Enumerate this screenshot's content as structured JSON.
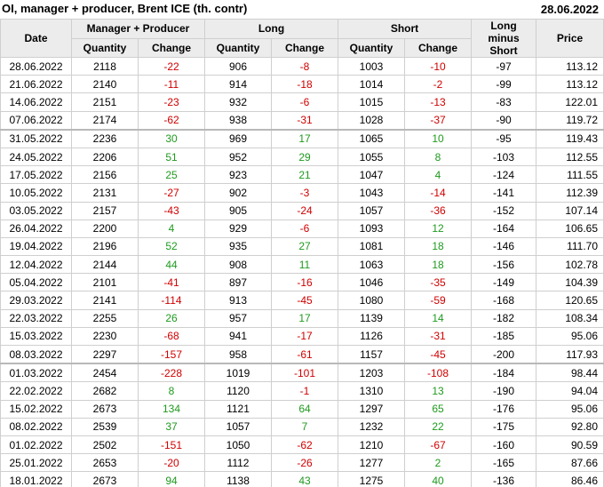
{
  "header": {
    "title": "OI, manager + producer, Brent ICE (th. contr)",
    "date": "28.06.2022"
  },
  "table": {
    "group_headers": {
      "date": "Date",
      "manager": "Manager + Producer",
      "long": "Long",
      "short": "Short",
      "long_minus_short": "Long minus Short",
      "price": "Price"
    },
    "sub_headers": [
      "Quantity",
      "Change",
      "Quantity",
      "Change",
      "Quantity",
      "Change"
    ],
    "rows": [
      [
        "28.06.2022",
        "2118",
        "-22",
        "906",
        "-8",
        "1003",
        "-10",
        "-97",
        "113.12"
      ],
      [
        "21.06.2022",
        "2140",
        "-11",
        "914",
        "-18",
        "1014",
        "-2",
        "-99",
        "113.12"
      ],
      [
        "14.06.2022",
        "2151",
        "-23",
        "932",
        "-6",
        "1015",
        "-13",
        "-83",
        "122.01"
      ],
      [
        "07.06.2022",
        "2174",
        "-62",
        "938",
        "-31",
        "1028",
        "-37",
        "-90",
        "119.72"
      ],
      [
        "31.05.2022",
        "2236",
        "30",
        "969",
        "17",
        "1065",
        "10",
        "-95",
        "119.43"
      ],
      [
        "24.05.2022",
        "2206",
        "51",
        "952",
        "29",
        "1055",
        "8",
        "-103",
        "112.55"
      ],
      [
        "17.05.2022",
        "2156",
        "25",
        "923",
        "21",
        "1047",
        "4",
        "-124",
        "111.55"
      ],
      [
        "10.05.2022",
        "2131",
        "-27",
        "902",
        "-3",
        "1043",
        "-14",
        "-141",
        "112.39"
      ],
      [
        "03.05.2022",
        "2157",
        "-43",
        "905",
        "-24",
        "1057",
        "-36",
        "-152",
        "107.14"
      ],
      [
        "26.04.2022",
        "2200",
        "4",
        "929",
        "-6",
        "1093",
        "12",
        "-164",
        "106.65"
      ],
      [
        "19.04.2022",
        "2196",
        "52",
        "935",
        "27",
        "1081",
        "18",
        "-146",
        "111.70"
      ],
      [
        "12.04.2022",
        "2144",
        "44",
        "908",
        "11",
        "1063",
        "18",
        "-156",
        "102.78"
      ],
      [
        "05.04.2022",
        "2101",
        "-41",
        "897",
        "-16",
        "1046",
        "-35",
        "-149",
        "104.39"
      ],
      [
        "29.03.2022",
        "2141",
        "-114",
        "913",
        "-45",
        "1080",
        "-59",
        "-168",
        "120.65"
      ],
      [
        "22.03.2022",
        "2255",
        "26",
        "957",
        "17",
        "1139",
        "14",
        "-182",
        "108.34"
      ],
      [
        "15.03.2022",
        "2230",
        "-68",
        "941",
        "-17",
        "1126",
        "-31",
        "-185",
        "95.06"
      ],
      [
        "08.03.2022",
        "2297",
        "-157",
        "958",
        "-61",
        "1157",
        "-45",
        "-200",
        "117.93"
      ],
      [
        "01.03.2022",
        "2454",
        "-228",
        "1019",
        "-101",
        "1203",
        "-108",
        "-184",
        "98.44"
      ],
      [
        "22.02.2022",
        "2682",
        "8",
        "1120",
        "-1",
        "1310",
        "13",
        "-190",
        "94.04"
      ],
      [
        "15.02.2022",
        "2673",
        "134",
        "1121",
        "64",
        "1297",
        "65",
        "-176",
        "95.06"
      ],
      [
        "08.02.2022",
        "2539",
        "37",
        "1057",
        "7",
        "1232",
        "22",
        "-175",
        "92.80"
      ],
      [
        "01.02.2022",
        "2502",
        "-151",
        "1050",
        "-62",
        "1210",
        "-67",
        "-160",
        "90.59"
      ],
      [
        "25.01.2022",
        "2653",
        "-20",
        "1112",
        "-26",
        "1277",
        "2",
        "-165",
        "87.66"
      ],
      [
        "18.01.2022",
        "2673",
        "94",
        "1138",
        "43",
        "1275",
        "40",
        "-136",
        "86.46"
      ]
    ]
  }
}
